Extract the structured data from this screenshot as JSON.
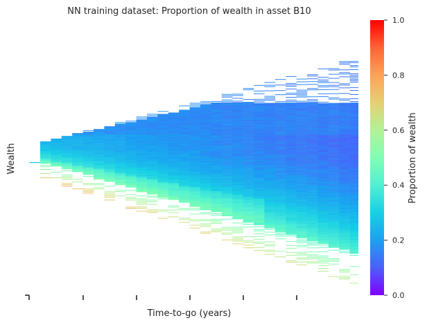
{
  "chart_data": {
    "type": "heatmap",
    "title": "NN training dataset: Proportion of wealth in asset B10",
    "xlabel": "Time-to-go (years)",
    "ylabel": "Wealth",
    "xlim": [
      0,
      30
    ],
    "x_tick_count": 6,
    "colorbar": {
      "label": "Proportion of wealth",
      "ticks": [
        0.0,
        0.2,
        0.4,
        0.6,
        0.8,
        1.0
      ],
      "tick_labels": [
        "0.0",
        "0.2",
        "0.4",
        "0.6",
        "0.8",
        "1.0"
      ],
      "range": [
        0,
        1
      ],
      "colormap": "rainbow",
      "colormap_stops": [
        "#8000ff",
        "#4c5ffb",
        "#1ba1f2",
        "#19cfe5",
        "#4ff0d3",
        "#80ffb4",
        "#b3f296",
        "#e6cf73",
        "#ffa256",
        "#ff6434",
        "#ff0000"
      ]
    },
    "grid": false,
    "legend": "none"
  }
}
